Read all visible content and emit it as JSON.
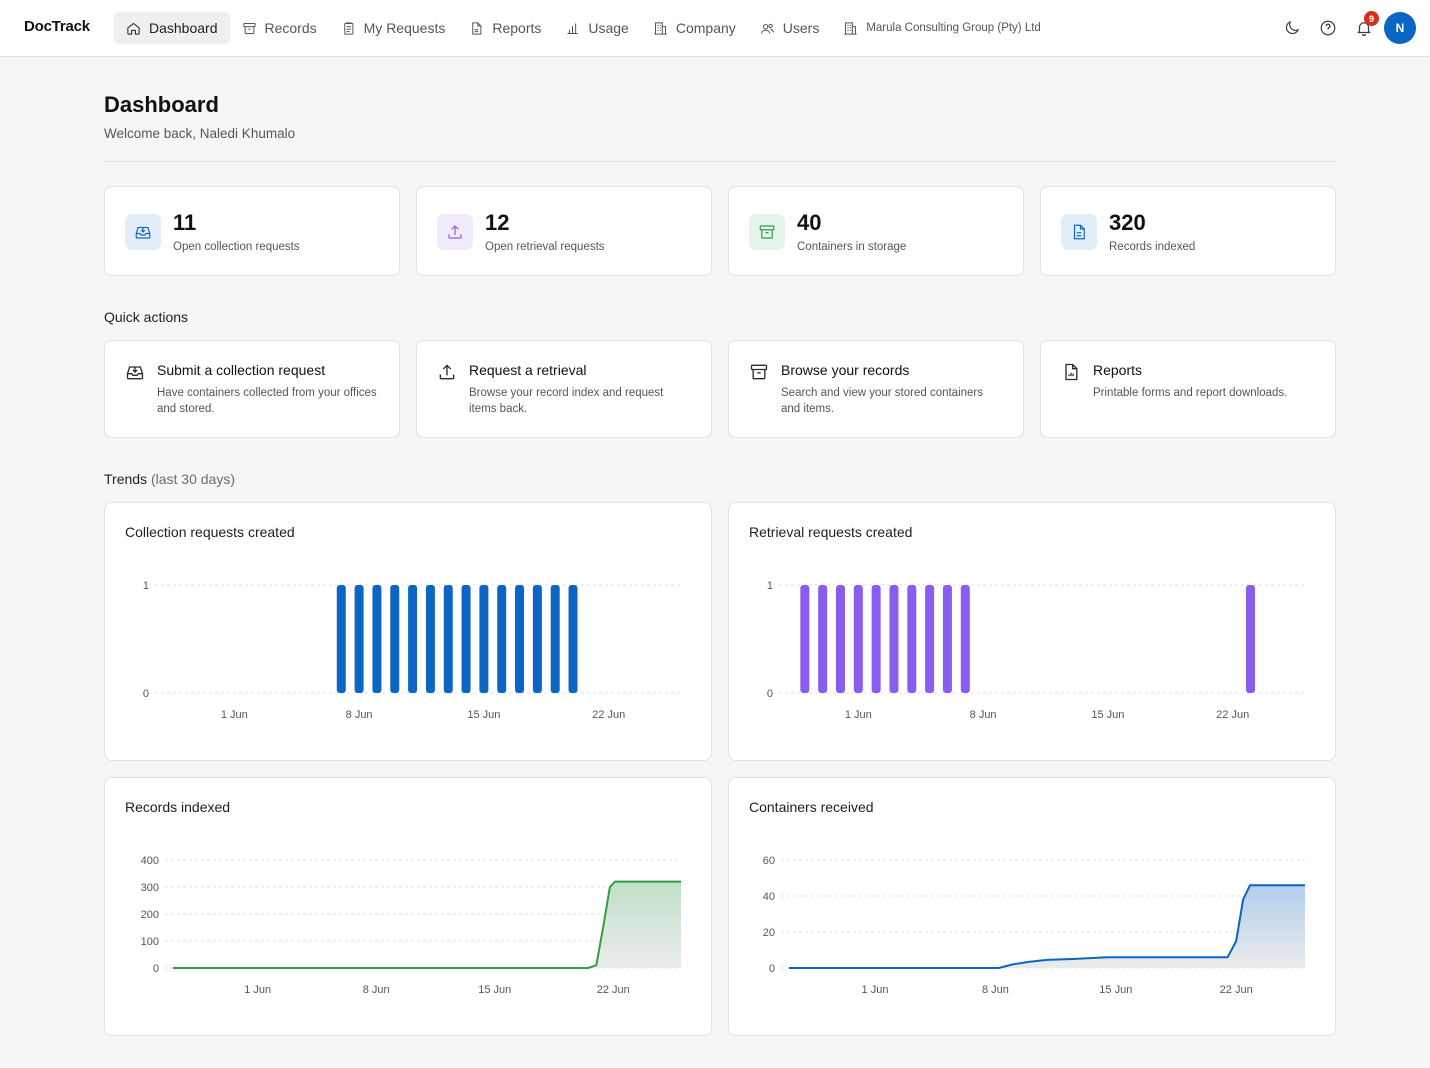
{
  "nav": {
    "brand": "DocTrack",
    "items": [
      {
        "label": "Dashboard",
        "icon": "home-icon",
        "active": true
      },
      {
        "label": "Records",
        "icon": "archive-icon"
      },
      {
        "label": "My Requests",
        "icon": "clipboard-icon"
      },
      {
        "label": "Reports",
        "icon": "file-icon"
      },
      {
        "label": "Usage",
        "icon": "bar-chart-icon"
      },
      {
        "label": "Company",
        "icon": "building-icon"
      },
      {
        "label": "Users",
        "icon": "users-icon"
      }
    ],
    "company": "Marula Consulting Group (Pty) Ltd",
    "notification_count": "9",
    "avatar_initial": "N"
  },
  "page": {
    "title": "Dashboard",
    "subtitle": "Welcome back, Naledi Khumalo"
  },
  "stats": [
    {
      "value": "11",
      "label": "Open collection requests",
      "icon": "inbox-download-icon",
      "color": "#1565c0",
      "bg": "#e3eefb"
    },
    {
      "value": "12",
      "label": "Open retrieval requests",
      "icon": "upload-icon",
      "color": "#8e5fd6",
      "bg": "#f1eafb"
    },
    {
      "value": "40",
      "label": "Containers in storage",
      "icon": "archive-box-icon",
      "color": "#2e9e4f",
      "bg": "#e5f4e9"
    },
    {
      "value": "320",
      "label": "Records indexed",
      "icon": "document-icon",
      "color": "#1565c0",
      "bg": "#e3eefb"
    }
  ],
  "quick_actions": {
    "heading": "Quick actions",
    "items": [
      {
        "title": "Submit a collection request",
        "desc": "Have containers collected from your offices and stored.",
        "icon": "inbox-download-icon"
      },
      {
        "title": "Request a retrieval",
        "desc": "Browse your record index and request items back.",
        "icon": "upload-icon"
      },
      {
        "title": "Browse your records",
        "desc": "Search and view your stored containers and items.",
        "icon": "archive-box-icon"
      },
      {
        "title": "Reports",
        "desc": "Printable forms and report downloads.",
        "icon": "report-file-icon"
      }
    ]
  },
  "trends": {
    "heading": "Trends",
    "heading_note": "(last 30 days)"
  },
  "chart_data": [
    {
      "type": "bar",
      "title": "Collection requests created",
      "color": "#0a66c2",
      "x_ticks": [
        "1 Jun",
        "8 Jun",
        "15 Jun",
        "22 Jun"
      ],
      "y_ticks": [
        "0",
        "1"
      ],
      "ylim": [
        0,
        1
      ],
      "day_range": [
        -4,
        25
      ],
      "days": [
        6,
        7,
        8,
        9,
        10,
        11,
        12,
        13,
        14,
        15,
        16,
        17,
        18,
        19
      ],
      "values": [
        1,
        1,
        1,
        1,
        1,
        1,
        1,
        1,
        1,
        1,
        1,
        1,
        1,
        1
      ]
    },
    {
      "type": "bar",
      "title": "Retrieval requests created",
      "color": "#8b5cf0",
      "x_ticks": [
        "1 Jun",
        "8 Jun",
        "15 Jun",
        "22 Jun"
      ],
      "y_ticks": [
        "0",
        "1"
      ],
      "ylim": [
        0,
        1
      ],
      "day_range": [
        -4,
        25
      ],
      "days": [
        -3,
        -2,
        -1,
        0,
        1,
        2,
        3,
        4,
        5,
        6,
        22
      ],
      "values": [
        1,
        1,
        1,
        1,
        1,
        1,
        1,
        1,
        1,
        1,
        1
      ]
    },
    {
      "type": "area",
      "title": "Records indexed",
      "color": "#2f9e44",
      "fill_top": "#b9ddc2",
      "x_ticks": [
        "1 Jun",
        "8 Jun",
        "15 Jun",
        "22 Jun"
      ],
      "y_ticks": [
        "0",
        "100",
        "200",
        "300",
        "400"
      ],
      "ylim": [
        0,
        400
      ],
      "day_range": [
        -5,
        25
      ],
      "points": [
        [
          -5,
          0
        ],
        [
          19.5,
          0
        ],
        [
          20.0,
          10
        ],
        [
          20.4,
          150
        ],
        [
          20.8,
          300
        ],
        [
          21.1,
          320
        ],
        [
          25,
          320
        ]
      ]
    },
    {
      "type": "area",
      "title": "Containers received",
      "color": "#0a66c2",
      "fill_top": "#a9c9ea",
      "x_ticks": [
        "1 Jun",
        "8 Jun",
        "15 Jun",
        "22 Jun"
      ],
      "y_ticks": [
        "0",
        "20",
        "40",
        "60"
      ],
      "ylim": [
        0,
        60
      ],
      "day_range": [
        -5,
        25
      ],
      "points": [
        [
          -5,
          0
        ],
        [
          7.2,
          0
        ],
        [
          8.0,
          2
        ],
        [
          9.0,
          3.5
        ],
        [
          10.0,
          4.5
        ],
        [
          11.5,
          5
        ],
        [
          13.5,
          6
        ],
        [
          20.5,
          6
        ],
        [
          21.0,
          15
        ],
        [
          21.4,
          38
        ],
        [
          21.8,
          46
        ],
        [
          25,
          46
        ]
      ]
    }
  ]
}
